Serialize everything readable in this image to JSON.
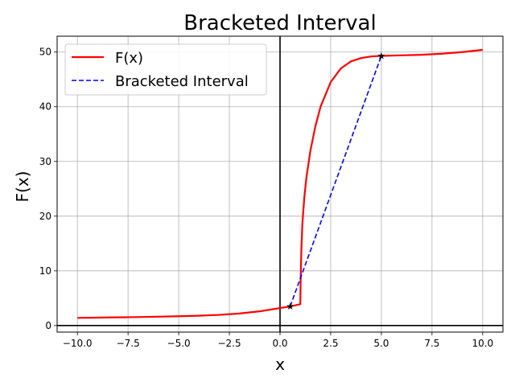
{
  "chart_data": {
    "type": "line",
    "title": "Bracketed Interval",
    "xlabel": "x",
    "ylabel": "F(x)",
    "xlim": [
      -11,
      11
    ],
    "ylim": [
      -1.2,
      52.9
    ],
    "grid": true,
    "legend_position": "top-left",
    "x_ticks": [
      -10,
      -7.5,
      -5,
      -2.5,
      0,
      2.5,
      5,
      7.5,
      10
    ],
    "x_tick_labels": [
      "−10.0",
      "−7.5",
      "−5.0",
      "−2.5",
      "0.0",
      "2.5",
      "5.0",
      "7.5",
      "10.0"
    ],
    "y_ticks": [
      0,
      10,
      20,
      30,
      40,
      50
    ],
    "y_tick_labels": [
      "0",
      "10",
      "20",
      "30",
      "40",
      "50"
    ],
    "reference_lines": {
      "x": 0,
      "y": 0,
      "color": "#000000"
    },
    "series": [
      {
        "name": "F(x)",
        "color": "#ff0000",
        "style": "solid",
        "x": [
          -10,
          -9,
          -8,
          -7,
          -6,
          -5,
          -4,
          -3,
          -2,
          -1.5,
          -1,
          -0.5,
          0,
          0.5,
          1,
          1.02,
          1.05,
          1.1,
          1.2,
          1.3,
          1.5,
          1.75,
          2,
          2.5,
          3,
          3.5,
          4,
          4.5,
          5,
          6,
          7,
          8,
          9,
          10
        ],
        "y": [
          1.4,
          1.45,
          1.5,
          1.55,
          1.62,
          1.7,
          1.8,
          1.95,
          2.2,
          2.4,
          2.6,
          2.9,
          3.2,
          3.5,
          3.9,
          8.5,
          13.5,
          18.5,
          23.5,
          27,
          32,
          36.5,
          40,
          44.5,
          47,
          48.3,
          48.9,
          49.2,
          49.3,
          49.4,
          49.5,
          49.7,
          50,
          50.4
        ]
      },
      {
        "name": "Bracketed Interval",
        "color": "#0000ff",
        "style": "dashed",
        "x": [
          0.5,
          5
        ],
        "y": [
          3.5,
          49.3
        ]
      }
    ],
    "bracket_markers": {
      "color": "#2f6f2f",
      "x": [
        0.5,
        5
      ],
      "y": [
        3.5,
        49.3
      ]
    }
  }
}
